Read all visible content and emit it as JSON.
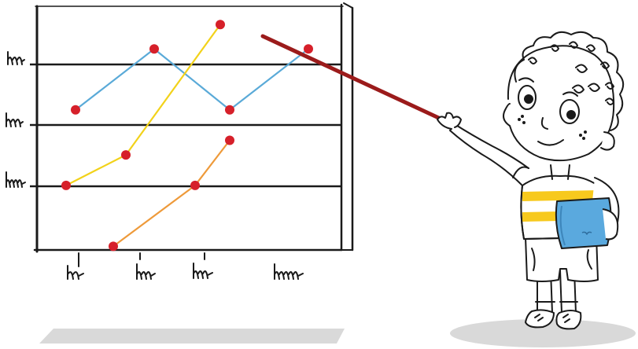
{
  "colors": {
    "blue": "#5aaad8",
    "yellow": "#f2d21a",
    "orange": "#ee9a3a",
    "dot": "#d6202a",
    "pointer": "#9b1b1b",
    "ink": "#1a1a1a",
    "shadow": "#d9d9d9",
    "shirt_stripe": "#f7c91d",
    "book": "#5aa9de"
  },
  "chart_data": {
    "type": "line",
    "title": "",
    "xlabel": "",
    "ylabel": "",
    "x_tick_labels_scribbled": true,
    "y_tick_labels_scribbled": true,
    "grid": "horizontal",
    "ylim": [
      0,
      4
    ],
    "series": [
      {
        "color_name": "blue",
        "x": [
          0.6,
          1.85,
          3.05,
          4.3
        ],
        "y": [
          2.3,
          3.3,
          2.3,
          3.3
        ]
      },
      {
        "color_name": "yellow",
        "x": [
          0.45,
          1.4,
          2.9
        ],
        "y": [
          1.06,
          1.56,
          3.7
        ]
      },
      {
        "color_name": "orange",
        "x": [
          1.2,
          2.5,
          3.05
        ],
        "y": [
          0.06,
          1.06,
          1.8
        ]
      }
    ]
  },
  "icons": {
    "character": "cartoon-boy-icon",
    "pointer": "pointer-stick-icon",
    "book": "book-icon"
  }
}
